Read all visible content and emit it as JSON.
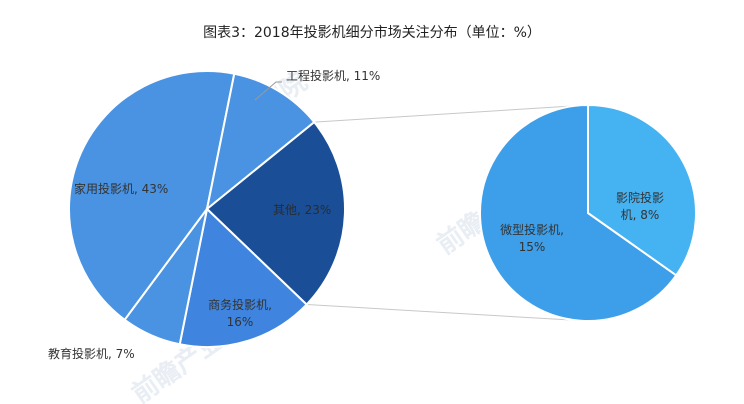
{
  "chart_data": {
    "type": "pie",
    "title": "图表3：2018年投影机细分市场关注分布（单位：%）",
    "main_pie": {
      "slices": [
        {
          "label": "家用投影机",
          "value": 43,
          "text": "家用投影机, 43%",
          "color": "#4a93e2"
        },
        {
          "label": "工程投影机",
          "value": 11,
          "text": "工程投影机, 11%",
          "color": "#4a93e2"
        },
        {
          "label": "其他",
          "value": 23,
          "text": "其他, 23%",
          "color": "#1a4f98"
        },
        {
          "label": "商务投影机",
          "value": 16,
          "text": "商务投影机, 16%",
          "color": "#3f84de"
        },
        {
          "label": "教育投影机",
          "value": 7,
          "text": "教育投影机, 7%",
          "color": "#4a93e2"
        }
      ]
    },
    "sub_pie": {
      "parent": "其他",
      "slices": [
        {
          "label": "微型投影机",
          "value": 15,
          "line1": "微型投影机,",
          "line2": "15%",
          "color": "#3d9fe9"
        },
        {
          "label": "影院投影机",
          "value": 8,
          "line1": "影院投影",
          "line2": "机, 8%",
          "color": "#45b2f2"
        }
      ]
    },
    "watermark": "前瞻产业研究院"
  }
}
